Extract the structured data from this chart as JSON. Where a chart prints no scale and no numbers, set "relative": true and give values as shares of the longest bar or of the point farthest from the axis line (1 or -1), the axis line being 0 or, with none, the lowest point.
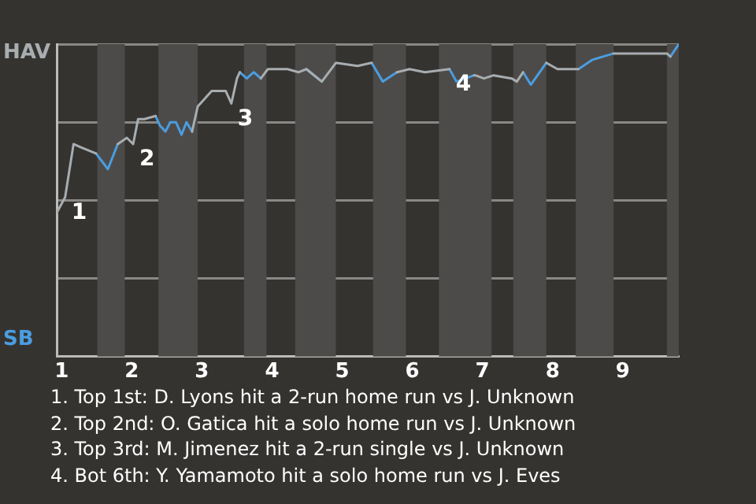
{
  "chart_data": {
    "type": "line",
    "relative": true,
    "x": [
      0.93,
      1.05,
      1.17,
      1.27,
      1.49,
      1.66,
      1.8,
      1.93,
      2.02,
      2.09,
      2.18,
      2.34,
      2.4,
      2.48,
      2.55,
      2.63,
      2.71,
      2.78,
      2.86,
      2.94,
      3.14,
      3.34,
      3.42,
      3.5,
      3.54,
      3.64,
      3.74,
      3.84,
      3.94,
      4.22,
      4.38,
      4.49,
      4.71,
      4.91,
      5.22,
      5.42,
      5.58,
      5.78,
      5.96,
      6.18,
      6.53,
      6.63,
      6.88,
      6.9,
      7.02,
      7.16,
      7.42,
      7.49,
      7.58,
      7.69,
      7.91,
      8.07,
      8.37,
      8.57,
      8.87,
      9.63,
      9.68,
      9.8
    ],
    "series": [
      {
        "color": "#a7adb0",
        "values": [
          0.46,
          0.51,
          0.68,
          0.67,
          0.65,
          null,
          0.68,
          0.7,
          0.68,
          0.76,
          0.76,
          0.77,
          null,
          null,
          null,
          null,
          null,
          null,
          0.72,
          0.8,
          0.85,
          0.85,
          0.81,
          0.89,
          0.91,
          null,
          null,
          0.89,
          0.92,
          0.92,
          0.91,
          0.92,
          0.88,
          0.94,
          0.93,
          0.94,
          null,
          0.91,
          0.92,
          0.91,
          0.92,
          null,
          0.9,
          0.9,
          0.89,
          0.9,
          0.89,
          0.88,
          0.91,
          null,
          0.94,
          0.92,
          0.92,
          null,
          0.97,
          0.97,
          0.96,
          null
        ]
      },
      {
        "color": "#4a9de0",
        "values": [
          null,
          null,
          null,
          null,
          0.65,
          0.6,
          0.68,
          null,
          null,
          null,
          null,
          0.77,
          0.74,
          0.72,
          0.75,
          0.75,
          0.71,
          0.75,
          0.72,
          null,
          null,
          null,
          null,
          null,
          0.91,
          0.89,
          0.91,
          0.89,
          null,
          null,
          null,
          0.92,
          0.88,
          null,
          null,
          0.94,
          0.88,
          0.91,
          null,
          null,
          0.92,
          0.88,
          0.9,
          null,
          null,
          null,
          null,
          null,
          0.91,
          0.87,
          0.94,
          null,
          0.92,
          0.95,
          0.97,
          null,
          0.96,
          1
        ]
      }
    ],
    "xlim": [
      0.93,
      9.8
    ],
    "xticks": [
      1,
      2,
      3,
      4,
      5,
      6,
      7,
      8,
      9
    ],
    "bands": [
      {
        "axis": "x",
        "from": 1.51,
        "to": 1.9,
        "color": "#4d4b49"
      },
      {
        "axis": "x",
        "from": 2.38,
        "to": 2.94,
        "color": "#4d4b49"
      },
      {
        "axis": "x",
        "from": 3.6,
        "to": 3.92,
        "color": "#4d4b49"
      },
      {
        "axis": "x",
        "from": 4.33,
        "to": 4.91,
        "color": "#4d4b49"
      },
      {
        "axis": "x",
        "from": 5.44,
        "to": 5.91,
        "color": "#4d4b49"
      },
      {
        "axis": "x",
        "from": 6.38,
        "to": 7.13,
        "color": "#4d4b49"
      },
      {
        "axis": "x",
        "from": 7.44,
        "to": 7.91,
        "color": "#4d4b49"
      },
      {
        "axis": "x",
        "from": 8.33,
        "to": 8.87,
        "color": "#4d4b49"
      },
      {
        "axis": "x",
        "from": 9.63,
        "to": 9.8,
        "color": "#4d4b49"
      }
    ],
    "grid": "y",
    "marker": "none",
    "line_style": "solid",
    "legend": false,
    "annotations": [
      "HAV",
      "SB",
      {
        "text": "1",
        "x": 1.05,
        "y": 0.51
      },
      {
        "text": "2",
        "x": 2.02,
        "y": 0.68
      },
      {
        "text": "3",
        "x": 3.42,
        "y": 0.81
      },
      {
        "text": "4",
        "x": 6.53,
        "y": 0.92
      },
      "1. Top 1st: D. Lyons hit a 2-run home run vs J. Unknown",
      "2. Top 2nd: O. Gatica hit a solo home run vs J. Unknown",
      "3. Top 3rd: M. Jimenez hit a 2-run single vs J. Unknown",
      "4. Bot 6th: Y. Yamamoto hit a solo home run vs J. Eves"
    ]
  }
}
